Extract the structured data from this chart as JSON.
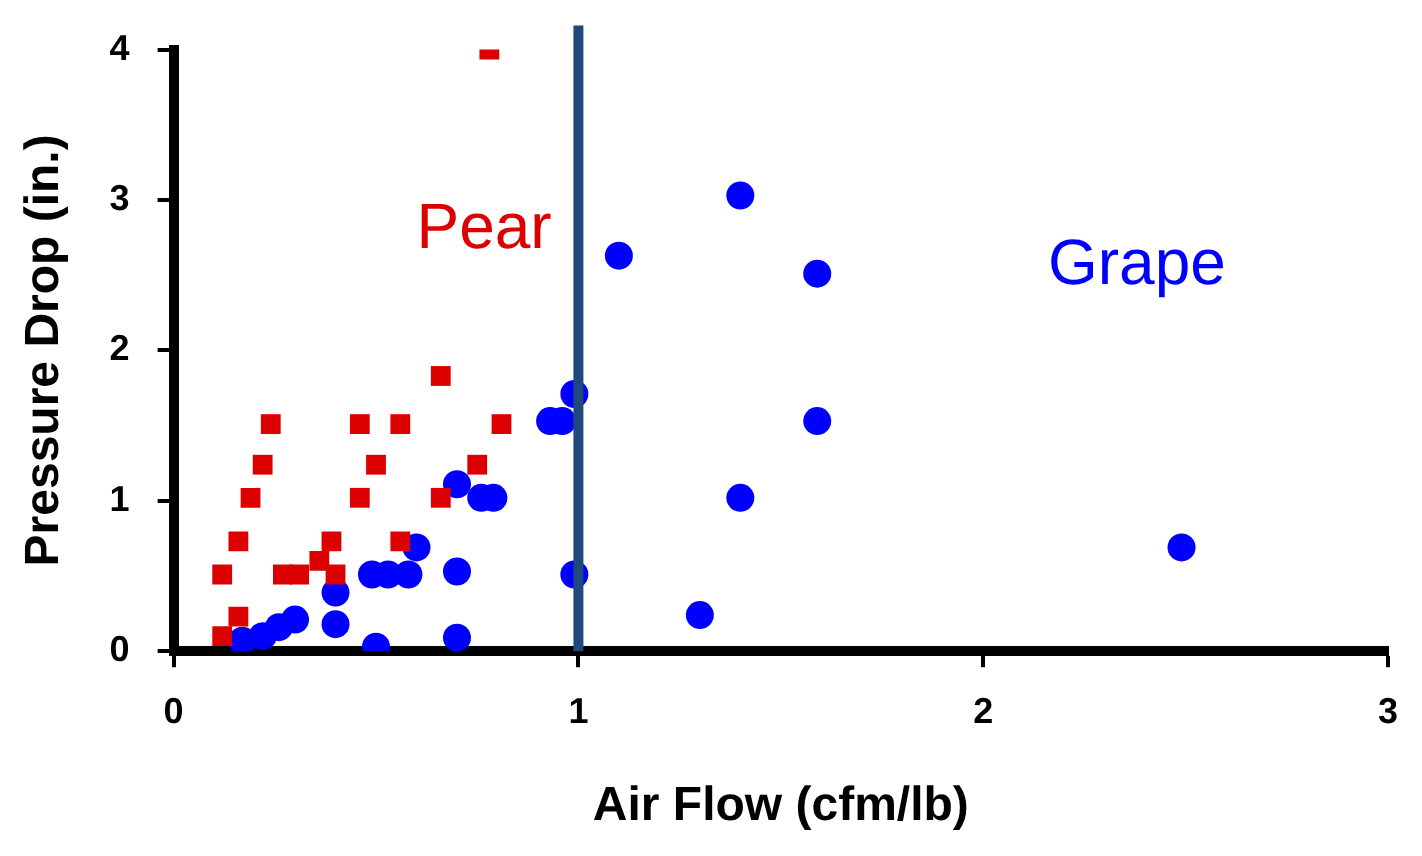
{
  "chart_data": {
    "type": "scatter",
    "xlabel": "Air Flow (cfm/lb)",
    "ylabel": "Pressure Drop (in.)",
    "xlim": [
      0,
      3
    ],
    "xticks": [
      0,
      1,
      2,
      3
    ],
    "ylim": [
      0,
      4
    ],
    "yticks": [
      0,
      1,
      2,
      3,
      4
    ],
    "grid": false,
    "legend": false,
    "ref_lines": [
      {
        "axis": "x",
        "value": 1,
        "color": "#1f497d"
      }
    ],
    "series": [
      {
        "name": "Pear",
        "color": "#dd0000",
        "marker": "square",
        "x": [
          0.12,
          0.16,
          0.12,
          0.16,
          0.19,
          0.22,
          0.24,
          0.27,
          0.31,
          0.36,
          0.39,
          0.4,
          0.46,
          0.46,
          0.5,
          0.56,
          0.56,
          0.66,
          0.66,
          0.75,
          0.81,
          0.78
        ],
        "values": [
          0.1,
          0.23,
          0.51,
          0.73,
          1.02,
          1.24,
          1.51,
          0.51,
          0.51,
          0.6,
          0.73,
          0.51,
          1.02,
          1.51,
          1.24,
          0.73,
          1.51,
          1.02,
          1.83,
          1.24,
          1.51,
          4.0
        ]
      },
      {
        "name": "Grape",
        "color": "#0000ff",
        "marker": "circle",
        "x": [
          0.17,
          0.22,
          0.26,
          0.3,
          0.4,
          0.4,
          0.5,
          0.49,
          0.53,
          0.58,
          0.6,
          0.7,
          0.7,
          0.7,
          0.76,
          0.79,
          0.93,
          0.96,
          0.99,
          0.99,
          1.1,
          1.4,
          1.59,
          1.59,
          1.4,
          1.3,
          2.49
        ],
        "values": [
          0.07,
          0.1,
          0.16,
          0.21,
          0.18,
          0.39,
          0.03,
          0.51,
          0.51,
          0.51,
          0.69,
          0.53,
          0.09,
          1.11,
          1.02,
          1.02,
          1.53,
          1.53,
          1.71,
          0.51,
          2.63,
          3.03,
          2.51,
          1.53,
          1.02,
          0.24,
          0.69
        ]
      }
    ]
  }
}
